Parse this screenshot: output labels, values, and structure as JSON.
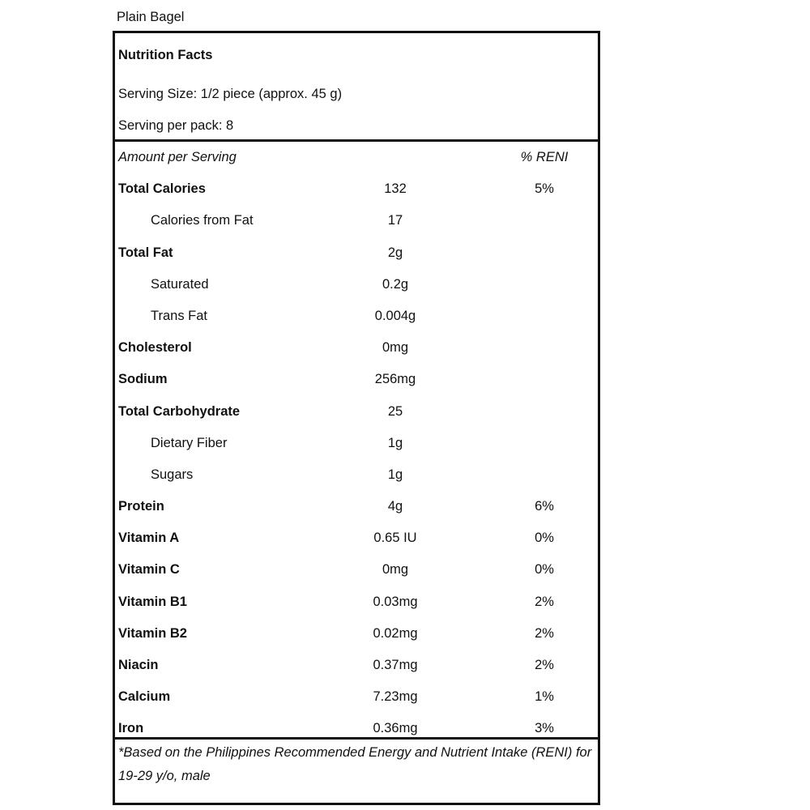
{
  "product_name": "Plain Bagel",
  "header": {
    "title": "Nutrition Facts",
    "serving_size": "Serving Size:  1/2 piece (approx. 45 g)",
    "servings_per_pack": "Serving per pack: 8"
  },
  "columns": {
    "amount": "Amount per Serving",
    "percent": "% RENI"
  },
  "rows": [
    {
      "name": "Total Calories",
      "value": "132",
      "percent": "5%",
      "bold": true
    },
    {
      "name": "Calories from Fat",
      "value": "17",
      "percent": "",
      "indent": true
    },
    {
      "name": "Total Fat",
      "value": "2g",
      "percent": "",
      "bold": true
    },
    {
      "name": "Saturated",
      "value": "0.2g",
      "percent": "",
      "indent": true
    },
    {
      "name": "Trans Fat",
      "value": "0.004g",
      "percent": "",
      "indent": true
    },
    {
      "name": "Cholesterol",
      "value": "0mg",
      "percent": "",
      "bold": true
    },
    {
      "name": "Sodium",
      "value": "256mg",
      "percent": "",
      "bold": true
    },
    {
      "name": "Total Carbohydrate",
      "value": "25",
      "percent": "",
      "bold": true
    },
    {
      "name": "Dietary Fiber",
      "value": "1g",
      "percent": "",
      "indent": true
    },
    {
      "name": "Sugars",
      "value": "1g",
      "percent": "",
      "indent": true
    },
    {
      "name": "Protein",
      "value": "4g",
      "percent": "6%",
      "bold": true
    },
    {
      "name": "Vitamin A",
      "value": "0.65 IU",
      "percent": "0%",
      "bold": true
    },
    {
      "name": "Vitamin C",
      "value": "0mg",
      "percent": "0%",
      "bold": true
    },
    {
      "name": "Vitamin B1",
      "value": "0.03mg",
      "percent": "2%",
      "bold": true
    },
    {
      "name": "Vitamin B2",
      "value": "0.02mg",
      "percent": "2%",
      "bold": true
    },
    {
      "name": "Niacin",
      "value": "0.37mg",
      "percent": "2%",
      "bold": true
    },
    {
      "name": "Calcium",
      "value": "7.23mg",
      "percent": "1%",
      "bold": true
    },
    {
      "name": "Iron",
      "value": "0.36mg",
      "percent": "3%",
      "bold": true
    }
  ],
  "footnote": "*Based on the Philippines Recommended Energy and Nutrient Intake (RENI) for 19-29 y/o, male"
}
